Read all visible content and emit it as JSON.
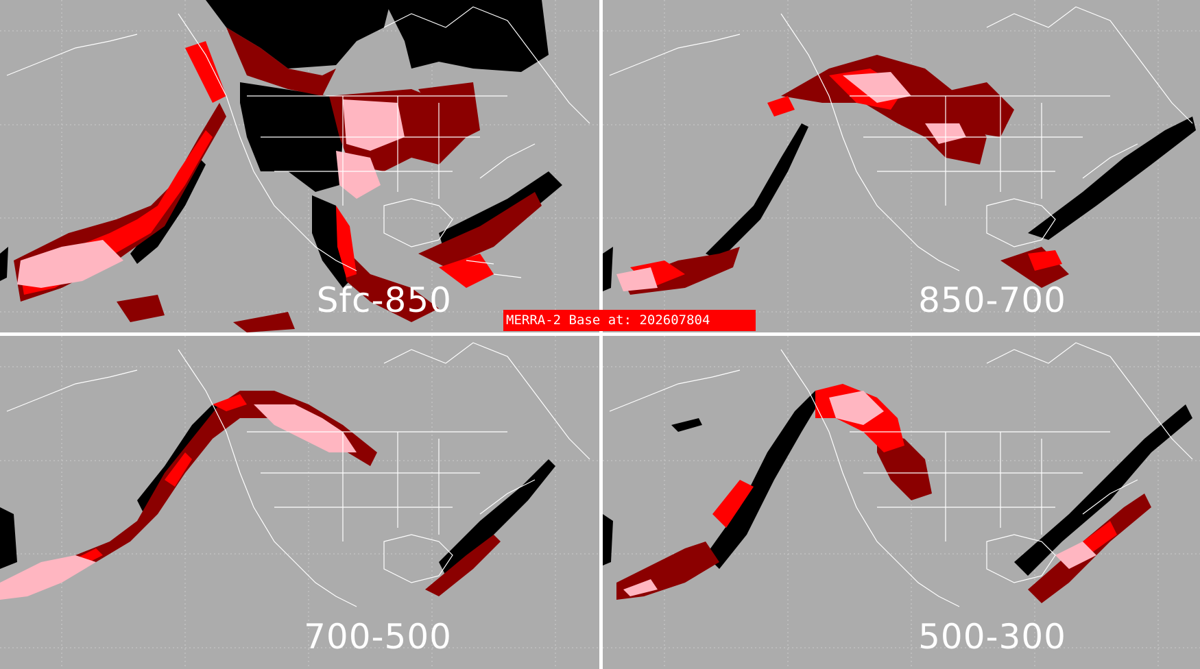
{
  "stamp": "MERRA-2 Base at: 202607804",
  "panels": [
    {
      "id": "tl",
      "label": "Sfc-850"
    },
    {
      "id": "tr",
      "label": "850-700"
    },
    {
      "id": "bl",
      "label": "700-500"
    },
    {
      "id": "br",
      "label": "500-300"
    }
  ],
  "colors": {
    "background": "#acacac",
    "land_outline": "#ffffff",
    "graticule": "#d9d9d9",
    "black_category": "#000000",
    "dark_red_category": "#8b0000",
    "red_category": "#ff0000",
    "pink_category": "#ffb6c1"
  }
}
